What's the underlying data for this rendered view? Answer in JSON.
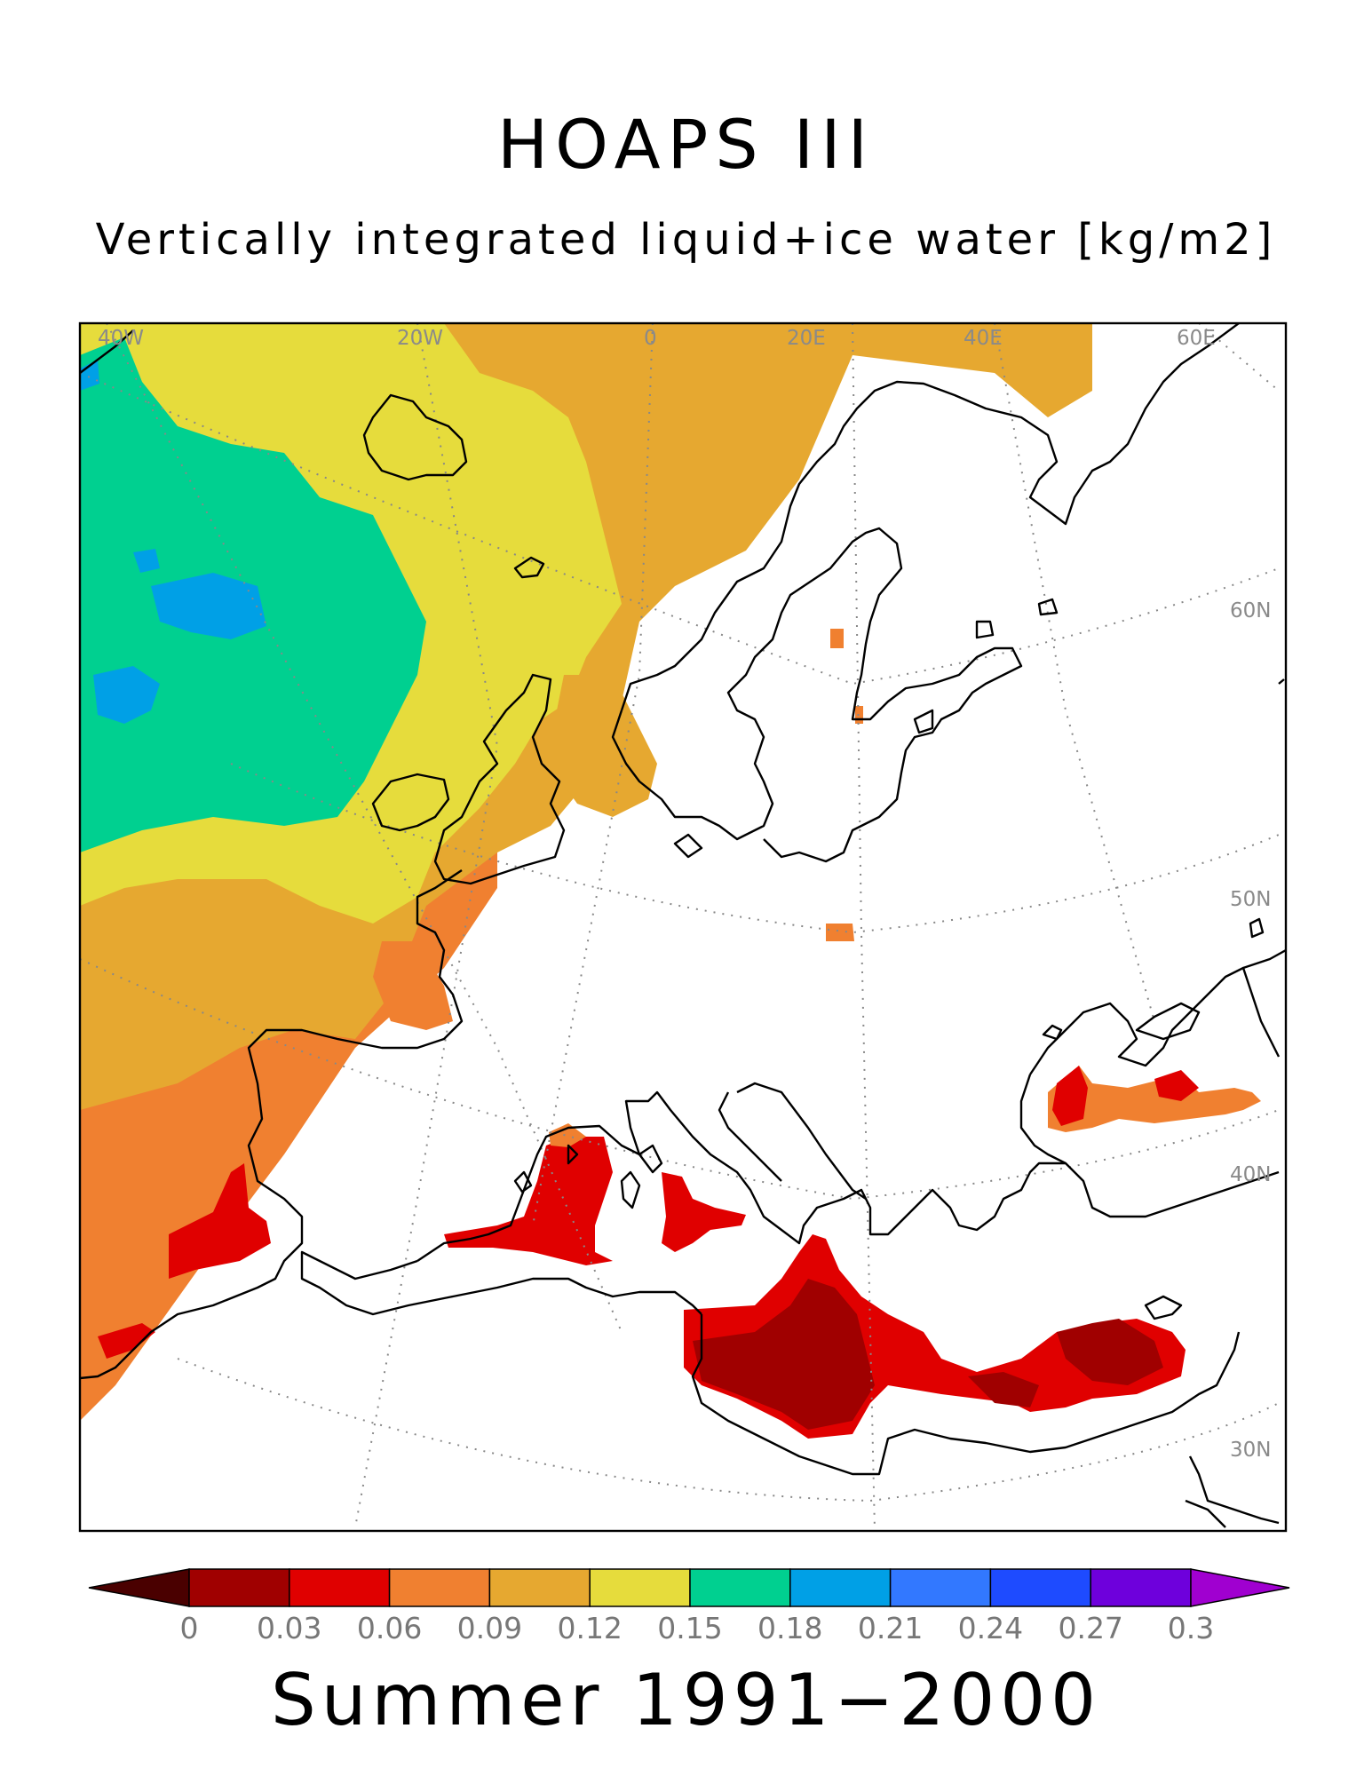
{
  "header": {
    "title": "HOAPS III",
    "subtitle": "Vertically integrated liquid+ice water [kg/m2]"
  },
  "footer": {
    "period": "Summer 1991−2000"
  },
  "map": {
    "grid_labels": {
      "lon": [
        "40W",
        "20W",
        "0",
        "20E",
        "40E",
        "60E"
      ],
      "lat": [
        "60N",
        "50N",
        "40N",
        "30N"
      ]
    }
  },
  "colorbar": {
    "tick_labels": [
      "0",
      "0.03",
      "0.06",
      "0.09",
      "0.12",
      "0.15",
      "0.18",
      "0.21",
      "0.24",
      "0.27",
      "0.3"
    ],
    "under_color": "#4a0000",
    "over_color": "#a000d0",
    "colors": [
      "#a00000",
      "#e00000",
      "#f08030",
      "#e6a830",
      "#e6dc3c",
      "#00d090",
      "#00a0e6",
      "#3278ff",
      "#1e4bff",
      "#6e00dc"
    ]
  }
}
